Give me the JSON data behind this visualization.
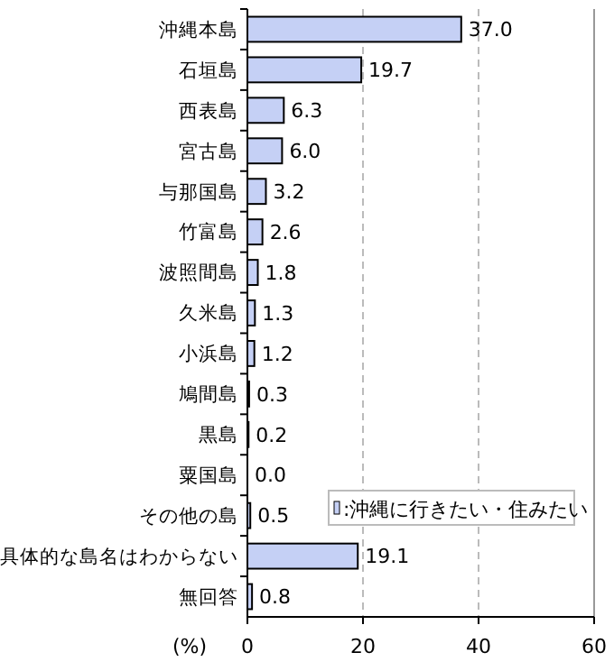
{
  "chart_data": {
    "type": "bar",
    "orientation": "horizontal",
    "xlabel": "(%)",
    "categories": [
      "沖縄本島",
      "石垣島",
      "西表島",
      "宮古島",
      "与那国島",
      "竹富島",
      "波照間島",
      "久米島",
      "小浜島",
      "鳩間島",
      "黒島",
      "粟国島",
      "その他の島",
      "具体的な島名はわからない",
      "無回答"
    ],
    "series": [
      {
        "name": ":沖縄に行きたい・住みたい",
        "color": "#c5d0f5",
        "values": [
          37.0,
          19.7,
          6.3,
          6.0,
          3.2,
          2.6,
          1.8,
          1.3,
          1.2,
          0.3,
          0.2,
          0.0,
          0.5,
          19.1,
          0.8
        ],
        "value_labels": [
          "37.0",
          "19.7",
          "6.3",
          "6.0",
          "3.2",
          "2.6",
          "1.8",
          "1.3",
          "1.2",
          "0.3",
          "0.2",
          "0.0",
          "0.5",
          "19.1",
          "0.8"
        ]
      }
    ],
    "xlim": [
      0,
      60
    ],
    "xticks": [
      0,
      20,
      40,
      60
    ],
    "grid": "x",
    "legend": "bottom right"
  }
}
